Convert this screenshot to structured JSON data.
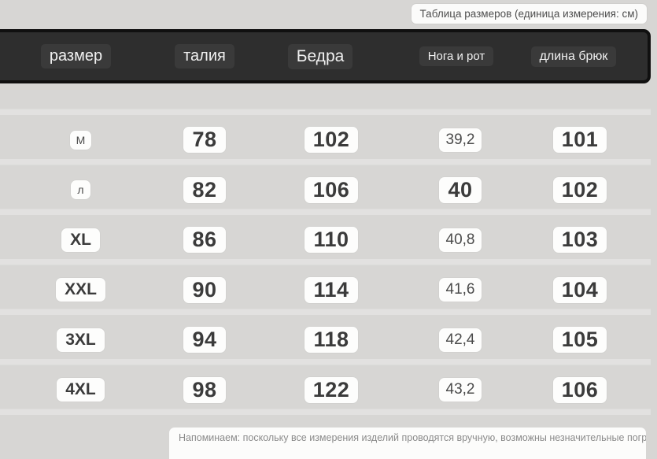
{
  "labels": {
    "unit_label": "Таблица размеров (единица измерения: см)",
    "footer_note": "Напоминаем: поскольку все измерения изделий проводятся вручную, возможны незначительные погрешки"
  },
  "colors": {
    "page_bg": "#d7d6d4",
    "header_bg": "#2e2e2e",
    "header_border": "#101010",
    "header_label_bg": "#3a3a3a",
    "chip_bg": "#fdfdfc",
    "chip_text": "#3b3b3b"
  },
  "chart_data": {
    "type": "table",
    "title": "Таблица размеров (единица измерения: см)",
    "columns": [
      "размер",
      "талия",
      "Бедра",
      "Нога и рот",
      "длина брюк"
    ],
    "rows": [
      [
        "М",
        "78",
        "102",
        "39,2",
        "101"
      ],
      [
        "л",
        "82",
        "106",
        "40",
        "102"
      ],
      [
        "XL",
        "86",
        "110",
        "40,8",
        "103"
      ],
      [
        "XXL",
        "90",
        "114",
        "41,6",
        "104"
      ],
      [
        "3XL",
        "94",
        "118",
        "42,4",
        "105"
      ],
      [
        "4XL",
        "98",
        "122",
        "43,2",
        "106"
      ]
    ]
  }
}
